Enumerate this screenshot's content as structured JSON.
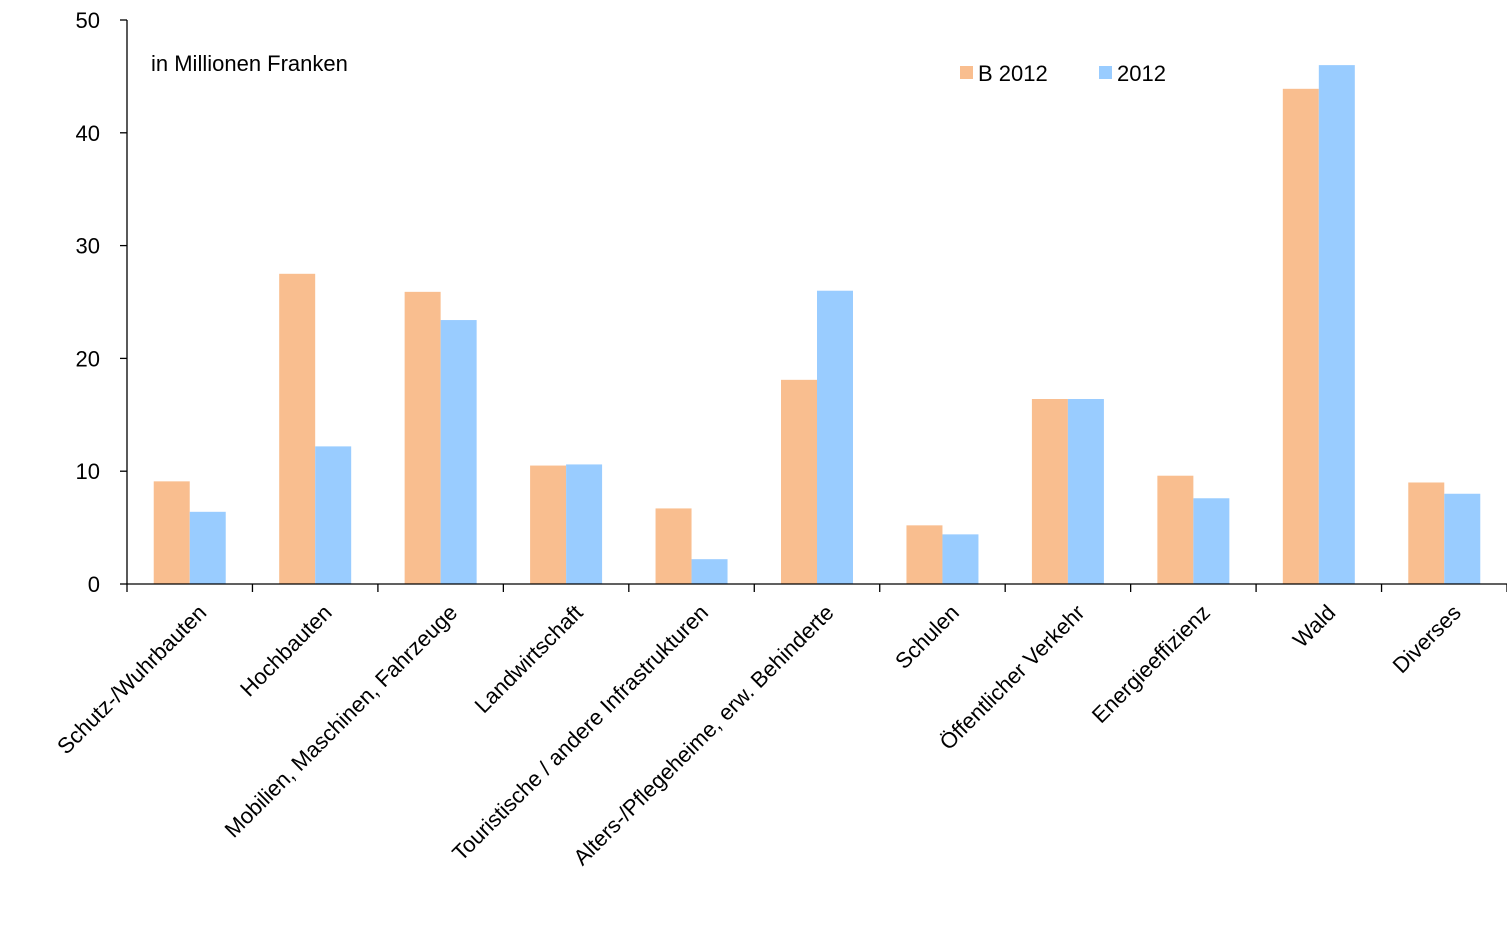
{
  "chart_data": {
    "type": "bar",
    "annotation": "in Millionen Franken",
    "categories": [
      "Schutz-/Wuhrbauten",
      "Hochbauten",
      "Mobilien, Maschinen, Fahrzeuge",
      "Landwirtschaft",
      "Touristische / andere Infrastrukturen",
      "Alters-/Pflegeheime, erw. Behinderte",
      "Schulen",
      "Öffentlicher Verkehr",
      "Energieeffizienz",
      "Wald",
      "Diverses"
    ],
    "series": [
      {
        "name": "B 2012",
        "color": "#F9BE8F",
        "values": [
          9.1,
          27.5,
          25.9,
          10.5,
          6.7,
          18.1,
          5.2,
          16.4,
          9.6,
          43.9,
          9.0
        ]
      },
      {
        "name": "2012",
        "color": "#99CCFF",
        "values": [
          6.4,
          12.2,
          23.4,
          10.6,
          2.2,
          26.0,
          4.4,
          16.4,
          7.6,
          46.0,
          8.0
        ]
      }
    ],
    "ylim": [
      0,
      50
    ],
    "yticks": [
      0,
      10,
      20,
      30,
      40,
      50
    ],
    "grid": false,
    "legend_position": "top-right"
  }
}
